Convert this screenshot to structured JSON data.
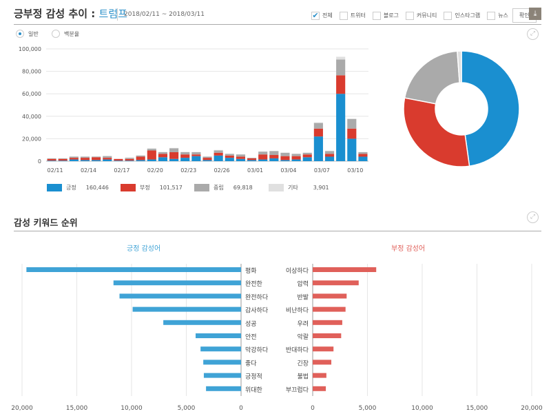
{
  "header": {
    "title": "긍부정 감성 추이 :",
    "target": "트럼프",
    "date_range": "2018/02/11 ~ 2018/03/11",
    "filters": [
      {
        "label": "전체",
        "checked": true
      },
      {
        "label": "트위터",
        "checked": false
      },
      {
        "label": "블로그",
        "checked": false
      },
      {
        "label": "커뮤니티",
        "checked": false
      },
      {
        "label": "인스타그램",
        "checked": false
      },
      {
        "label": "뉴스",
        "checked": false
      }
    ],
    "confirm_label": "확인",
    "download_icon": "download-icon"
  },
  "view_mode": {
    "options": [
      "일반",
      "백분율"
    ],
    "selected": "일반"
  },
  "keyword_section": {
    "title": "감성 키워드 순위"
  },
  "colors": {
    "positive": "#1a8fd0",
    "negative": "#d93b2e",
    "neutral": "#aaaaaa",
    "other": "#e0e0e0",
    "pos_kw": "#3fa3d6",
    "neg_kw": "#e0605a"
  },
  "chart_data": [
    {
      "type": "bar",
      "stacked": true,
      "categories": [
        "02/11",
        "02/12",
        "02/13",
        "02/14",
        "02/15",
        "02/16",
        "02/17",
        "02/18",
        "02/19",
        "02/20",
        "02/21",
        "02/22",
        "02/23",
        "02/24",
        "02/25",
        "02/26",
        "02/27",
        "02/28",
        "03/01",
        "03/02",
        "03/03",
        "03/04",
        "03/05",
        "03/06",
        "03/07",
        "03/08",
        "03/09",
        "03/10",
        "03/11"
      ],
      "tick_labels": [
        "02/11",
        "02/14",
        "02/17",
        "02/20",
        "02/23",
        "02/26",
        "03/01",
        "03/04",
        "03/07",
        "03/10"
      ],
      "y_ticks": [
        "0",
        "20,000",
        "40,000",
        "60,000",
        "80,000",
        "100,000"
      ],
      "ylim": [
        0,
        100000
      ],
      "grid": true,
      "series": [
        {
          "name": "긍정",
          "total": "160,446",
          "values": [
            500,
            500,
            1500,
            1000,
            1000,
            1500,
            500,
            500,
            1000,
            1500,
            3500,
            2000,
            3000,
            4500,
            1000,
            5000,
            3000,
            2000,
            1000,
            1500,
            2500,
            1000,
            1500,
            3500,
            22000,
            4000,
            60000,
            20000,
            4000
          ]
        },
        {
          "name": "부정",
          "total": "101,517",
          "values": [
            1500,
            1500,
            1500,
            2000,
            2500,
            1500,
            1500,
            1500,
            3000,
            8000,
            3000,
            6000,
            3000,
            1500,
            2000,
            2500,
            2000,
            2000,
            1500,
            4500,
            3000,
            3500,
            3000,
            2500,
            7000,
            2500,
            16500,
            9000,
            2500
          ]
        },
        {
          "name": "중립",
          "total": "69,818",
          "values": [
            500,
            500,
            1000,
            1000,
            500,
            1500,
            0,
            1000,
            1000,
            1500,
            1500,
            3500,
            2000,
            2000,
            1000,
            2000,
            1500,
            2000,
            500,
            2500,
            3500,
            3000,
            2000,
            1500,
            5000,
            2500,
            14000,
            8500,
            1500
          ]
        },
        {
          "name": "기타",
          "total": "3,901",
          "values": [
            200,
            200,
            300,
            200,
            300,
            300,
            100,
            200,
            300,
            500,
            300,
            300,
            300,
            200,
            200,
            500,
            200,
            200,
            100,
            200,
            200,
            200,
            200,
            200,
            500,
            300,
            2500,
            500,
            200
          ]
        }
      ]
    },
    {
      "type": "pie",
      "donut": true,
      "labels": [
        "긍정",
        "부정",
        "중립",
        "기타"
      ],
      "values": [
        160446,
        101517,
        69818,
        3901
      ]
    },
    {
      "type": "bar",
      "orientation": "horizontal",
      "title": "긍정 감성어",
      "categories": [
        "평화",
        "완전한",
        "완전하다",
        "감사하다",
        "성공",
        "안전",
        "막강하다",
        "좋다",
        "긍정적",
        "위대한"
      ],
      "values": [
        19600,
        11650,
        11100,
        9900,
        7100,
        4150,
        3700,
        3450,
        3400,
        3200
      ],
      "xlim": [
        20000,
        0
      ],
      "x_ticks": [
        "20,000",
        "15,000",
        "10,000",
        "5,000",
        "0"
      ],
      "grid": true
    },
    {
      "type": "bar",
      "orientation": "horizontal",
      "title": "부정 감성어",
      "categories": [
        "이상하다",
        "압력",
        "반발",
        "비난하다",
        "우려",
        "악랄",
        "반대하다",
        "긴장",
        "불법",
        "부끄럽다"
      ],
      "values": [
        5800,
        4200,
        3100,
        3000,
        2700,
        2600,
        1900,
        1700,
        1250,
        1200
      ],
      "xlim": [
        0,
        20000
      ],
      "x_ticks": [
        "0",
        "5,000",
        "10,000",
        "15,000",
        "20,000"
      ],
      "grid": true
    }
  ]
}
